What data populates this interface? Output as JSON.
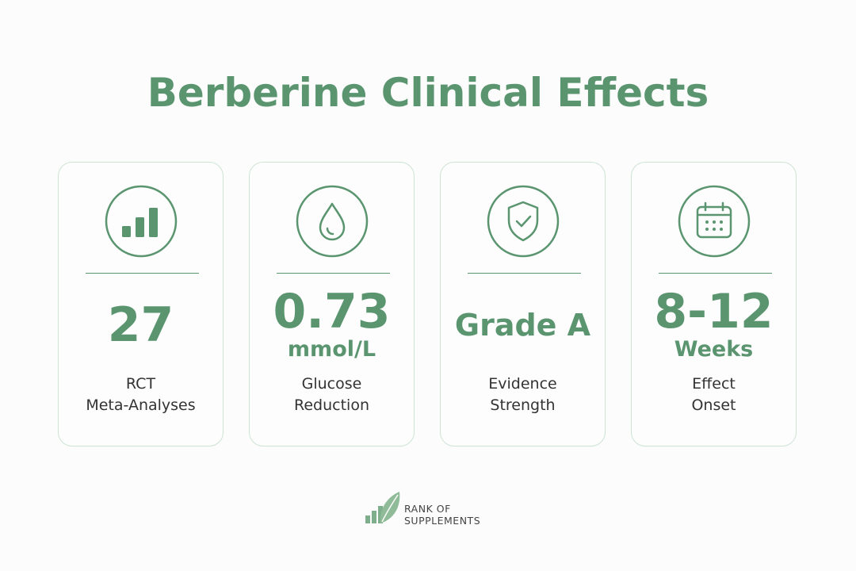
{
  "header": {
    "title": "Berberine Clinical Effects"
  },
  "cards": [
    {
      "value": "27",
      "label": [
        "RCT",
        "Meta-Analyses"
      ]
    },
    {
      "value": "0.73",
      "unit": "mmol/L",
      "label": [
        "Glucose",
        "Reduction"
      ]
    },
    {
      "value": "Grade A",
      "label": [
        "Evidence",
        "Strength"
      ]
    },
    {
      "value": "8-12",
      "unit": "Weeks",
      "label": [
        "Effect",
        "Onset"
      ]
    }
  ],
  "brand": {
    "line1": "RANK OF",
    "line2": "SUPPLEMENTS"
  }
}
